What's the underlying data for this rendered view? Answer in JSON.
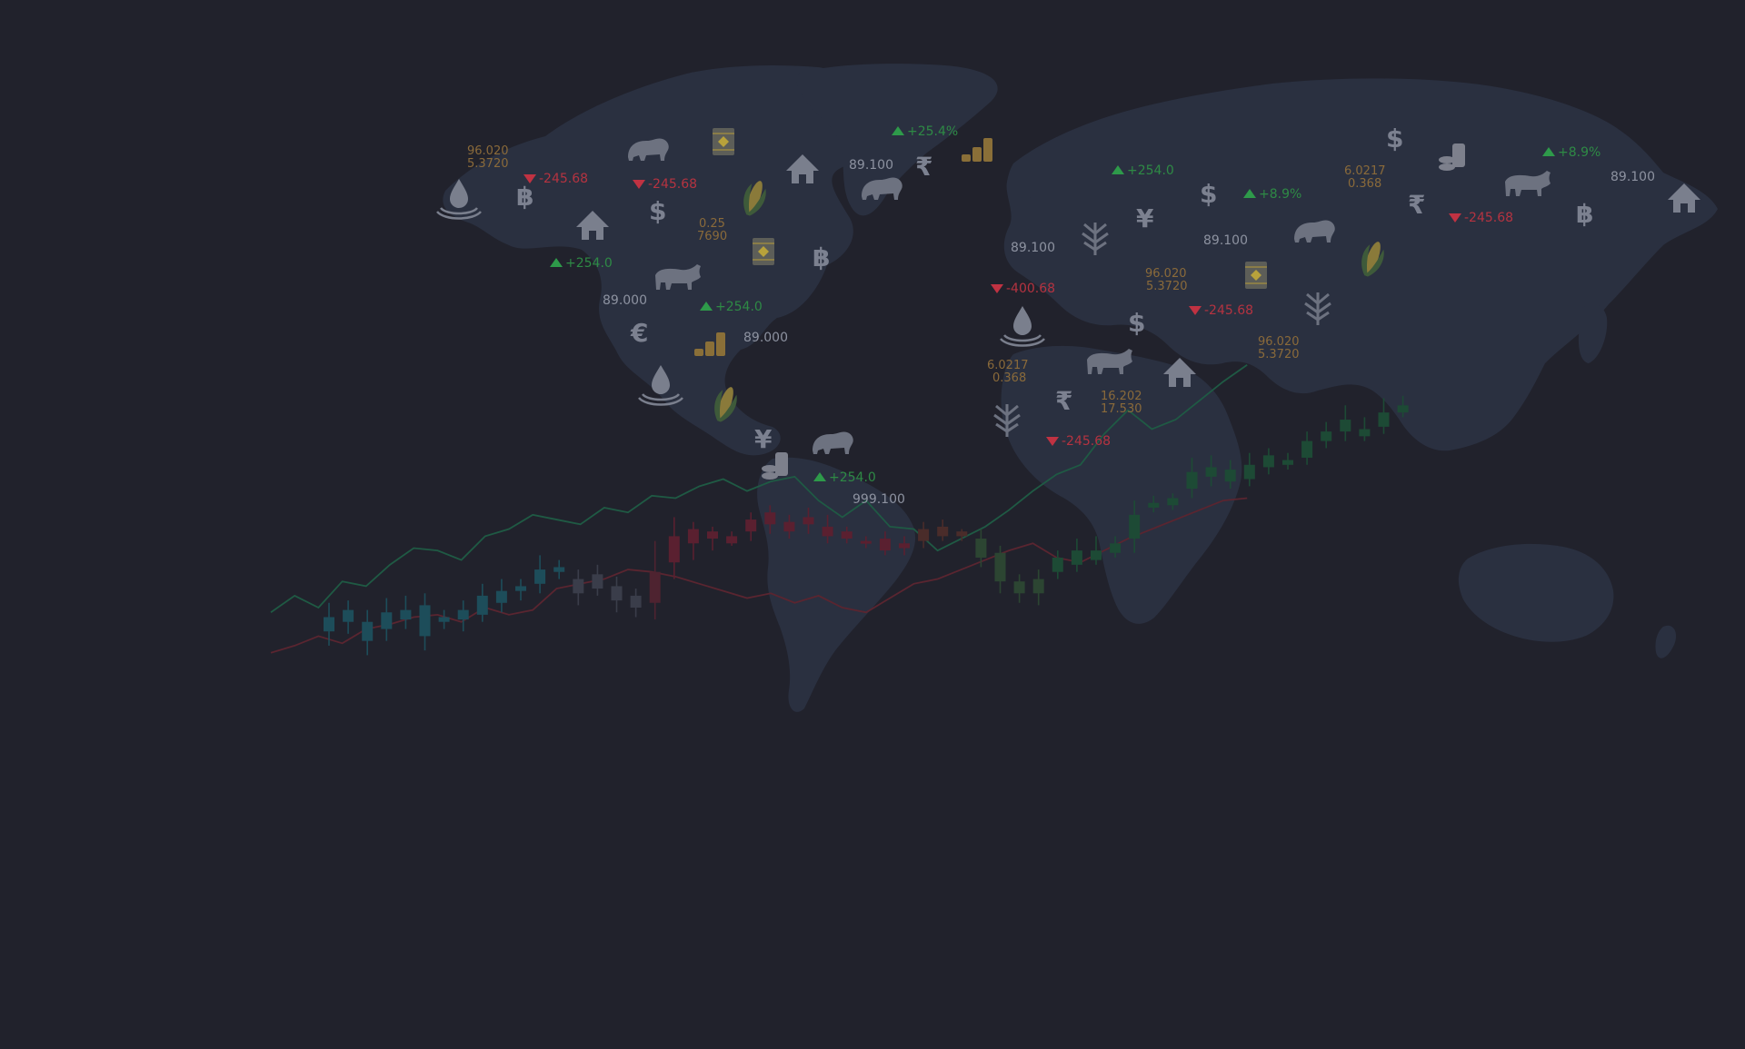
{
  "theme": {
    "background": "#21222c",
    "continent": "#2c3344",
    "up": "#2e8a45",
    "down": "#b53340",
    "neutral": "#8d92a0",
    "accent_gold": "#8a6a3a"
  },
  "labels": [
    {
      "text": "96.020",
      "kind": "pair"
    },
    {
      "text": "5.3720",
      "kind": "pair"
    },
    {
      "text": "-245.68",
      "kind": "down"
    },
    {
      "text": "-245.68",
      "kind": "down"
    },
    {
      "text": "+25.4%",
      "kind": "up"
    },
    {
      "text": "89.100",
      "kind": "neutral"
    },
    {
      "text": "0.25",
      "kind": "pair"
    },
    {
      "text": "7690",
      "kind": "pair"
    },
    {
      "text": "+254.0",
      "kind": "up"
    },
    {
      "text": "89.000",
      "kind": "neutral"
    },
    {
      "text": "+254.0",
      "kind": "up"
    },
    {
      "text": "89.000",
      "kind": "neutral"
    },
    {
      "text": "+254.0",
      "kind": "up"
    },
    {
      "text": "999.100",
      "kind": "neutral"
    },
    {
      "text": "+254.0",
      "kind": "up"
    },
    {
      "text": "+8.9%",
      "kind": "up"
    },
    {
      "text": "6.0217",
      "kind": "pair"
    },
    {
      "text": "0.368",
      "kind": "pair"
    },
    {
      "text": "+8.9%",
      "kind": "up"
    },
    {
      "text": "89.100",
      "kind": "neutral"
    },
    {
      "text": "-245.68",
      "kind": "down"
    },
    {
      "text": "89.100",
      "kind": "neutral"
    },
    {
      "text": "89.100",
      "kind": "neutral"
    },
    {
      "text": "96.020",
      "kind": "pair"
    },
    {
      "text": "5.3720",
      "kind": "pair"
    },
    {
      "text": "-400.68",
      "kind": "down"
    },
    {
      "text": "-245.68",
      "kind": "down"
    },
    {
      "text": "96.020",
      "kind": "pair"
    },
    {
      "text": "5.3720",
      "kind": "pair"
    },
    {
      "text": "6.0217",
      "kind": "pair"
    },
    {
      "text": "0.368",
      "kind": "pair"
    },
    {
      "text": "16.202",
      "kind": "pair"
    },
    {
      "text": "17.530",
      "kind": "pair"
    },
    {
      "text": "-245.68",
      "kind": "down"
    }
  ],
  "currency_symbols": [
    "฿",
    "$",
    "฿",
    "€",
    "¥",
    "₹",
    "¥",
    "$",
    "$",
    "₹",
    "฿",
    "$",
    "₹"
  ],
  "icons": [
    "oil-drop-icon",
    "bear-icon",
    "bull-icon",
    "house-icon",
    "oil-barrel-icon",
    "corn-icon",
    "coin-stack-icon",
    "wheat-icon"
  ],
  "chart_data": {
    "type": "candlestick",
    "title": "",
    "candles": [
      {
        "o": 40,
        "c": 46,
        "h": 52,
        "l": 34,
        "color": "teal"
      },
      {
        "o": 44,
        "c": 49,
        "h": 53,
        "l": 39,
        "color": "teal"
      },
      {
        "o": 36,
        "c": 44,
        "h": 49,
        "l": 30,
        "color": "teal"
      },
      {
        "o": 41,
        "c": 48,
        "h": 54,
        "l": 36,
        "color": "teal"
      },
      {
        "o": 45,
        "c": 49,
        "h": 55,
        "l": 41,
        "color": "teal"
      },
      {
        "o": 38,
        "c": 51,
        "h": 56,
        "l": 32,
        "color": "teal"
      },
      {
        "o": 44,
        "c": 46,
        "h": 49,
        "l": 41,
        "color": "teal"
      },
      {
        "o": 45,
        "c": 49,
        "h": 53,
        "l": 40,
        "color": "teal"
      },
      {
        "o": 47,
        "c": 55,
        "h": 60,
        "l": 44,
        "color": "teal"
      },
      {
        "o": 52,
        "c": 57,
        "h": 62,
        "l": 48,
        "color": "teal"
      },
      {
        "o": 57,
        "c": 59,
        "h": 62,
        "l": 53,
        "color": "teal"
      },
      {
        "o": 60,
        "c": 66,
        "h": 72,
        "l": 56,
        "color": "teal"
      },
      {
        "o": 65,
        "c": 67,
        "h": 70,
        "l": 62,
        "color": "teal"
      },
      {
        "o": 62,
        "c": 56,
        "h": 66,
        "l": 51,
        "color": "slate"
      },
      {
        "o": 64,
        "c": 58,
        "h": 68,
        "l": 55,
        "color": "slate"
      },
      {
        "o": 59,
        "c": 53,
        "h": 63,
        "l": 48,
        "color": "slate"
      },
      {
        "o": 55,
        "c": 50,
        "h": 58,
        "l": 46,
        "color": "slate"
      },
      {
        "o": 52,
        "c": 65,
        "h": 78,
        "l": 45,
        "color": "maroon"
      },
      {
        "o": 69,
        "c": 80,
        "h": 88,
        "l": 62,
        "color": "red"
      },
      {
        "o": 77,
        "c": 83,
        "h": 86,
        "l": 70,
        "color": "red"
      },
      {
        "o": 82,
        "c": 79,
        "h": 84,
        "l": 74,
        "color": "red"
      },
      {
        "o": 80,
        "c": 77,
        "h": 82,
        "l": 76,
        "color": "red"
      },
      {
        "o": 82,
        "c": 87,
        "h": 90,
        "l": 78,
        "color": "red"
      },
      {
        "o": 85,
        "c": 90,
        "h": 93,
        "l": 81,
        "color": "red"
      },
      {
        "o": 86,
        "c": 82,
        "h": 89,
        "l": 79,
        "color": "red"
      },
      {
        "o": 88,
        "c": 85,
        "h": 92,
        "l": 81,
        "color": "red"
      },
      {
        "o": 84,
        "c": 80,
        "h": 89,
        "l": 77,
        "color": "red"
      },
      {
        "o": 82,
        "c": 79,
        "h": 84,
        "l": 77,
        "color": "red"
      },
      {
        "o": 78,
        "c": 77,
        "h": 80,
        "l": 75,
        "color": "red"
      },
      {
        "o": 79,
        "c": 74,
        "h": 82,
        "l": 72,
        "color": "red"
      },
      {
        "o": 77,
        "c": 75,
        "h": 80,
        "l": 72,
        "color": "red"
      },
      {
        "o": 78,
        "c": 83,
        "h": 86,
        "l": 75,
        "color": "brown"
      },
      {
        "o": 80,
        "c": 84,
        "h": 87,
        "l": 78,
        "color": "brown"
      },
      {
        "o": 80,
        "c": 82,
        "h": 83,
        "l": 78,
        "color": "brown"
      },
      {
        "o": 79,
        "c": 71,
        "h": 83,
        "l": 67,
        "color": "olive"
      },
      {
        "o": 73,
        "c": 61,
        "h": 76,
        "l": 56,
        "color": "olive"
      },
      {
        "o": 61,
        "c": 56,
        "h": 64,
        "l": 52,
        "color": "olive"
      },
      {
        "o": 62,
        "c": 56,
        "h": 66,
        "l": 51,
        "color": "olive"
      },
      {
        "o": 65,
        "c": 71,
        "h": 74,
        "l": 62,
        "color": "green"
      },
      {
        "o": 68,
        "c": 74,
        "h": 79,
        "l": 65,
        "color": "green"
      },
      {
        "o": 70,
        "c": 74,
        "h": 80,
        "l": 68,
        "color": "green"
      },
      {
        "o": 73,
        "c": 77,
        "h": 80,
        "l": 71,
        "color": "green"
      },
      {
        "o": 79,
        "c": 89,
        "h": 95,
        "l": 73,
        "color": "green"
      },
      {
        "o": 92,
        "c": 94,
        "h": 97,
        "l": 90,
        "color": "green"
      },
      {
        "o": 93,
        "c": 96,
        "h": 98,
        "l": 91,
        "color": "green"
      },
      {
        "o": 100,
        "c": 107,
        "h": 113,
        "l": 96,
        "color": "green"
      },
      {
        "o": 105,
        "c": 109,
        "h": 114,
        "l": 101,
        "color": "green"
      },
      {
        "o": 103,
        "c": 108,
        "h": 112,
        "l": 100,
        "color": "green"
      },
      {
        "o": 104,
        "c": 110,
        "h": 115,
        "l": 101,
        "color": "green"
      },
      {
        "o": 109,
        "c": 114,
        "h": 117,
        "l": 106,
        "color": "green"
      },
      {
        "o": 110,
        "c": 112,
        "h": 115,
        "l": 108,
        "color": "green"
      },
      {
        "o": 113,
        "c": 120,
        "h": 124,
        "l": 110,
        "color": "green"
      },
      {
        "o": 120,
        "c": 124,
        "h": 128,
        "l": 117,
        "color": "green"
      },
      {
        "o": 124,
        "c": 129,
        "h": 135,
        "l": 120,
        "color": "green"
      },
      {
        "o": 122,
        "c": 125,
        "h": 130,
        "l": 120,
        "color": "green"
      },
      {
        "o": 126,
        "c": 132,
        "h": 138,
        "l": 123,
        "color": "green"
      },
      {
        "o": 132,
        "c": 135,
        "h": 139,
        "l": 130,
        "color": "green"
      }
    ],
    "line_series": [
      {
        "color": "#1f5a44",
        "values": [
          48,
          55,
          50,
          61,
          59,
          68,
          75,
          74,
          70,
          80,
          83,
          89,
          87,
          85,
          92,
          90,
          97,
          96,
          101,
          104,
          99,
          103,
          105,
          95,
          88,
          95,
          84,
          83,
          74,
          79,
          84,
          91,
          99,
          106,
          110,
          123,
          133,
          125,
          129,
          137,
          145,
          152
        ]
      },
      {
        "color": "#5a2530",
        "values": [
          31,
          34,
          38,
          35,
          41,
          43,
          46,
          47,
          44,
          50,
          47,
          49,
          58,
          60,
          62,
          66,
          65,
          63,
          60,
          57,
          54,
          56,
          52,
          55,
          50,
          48,
          54,
          60,
          62,
          66,
          70,
          74,
          77,
          71,
          69,
          74,
          79,
          83,
          87,
          91,
          95,
          96
        ]
      }
    ]
  }
}
